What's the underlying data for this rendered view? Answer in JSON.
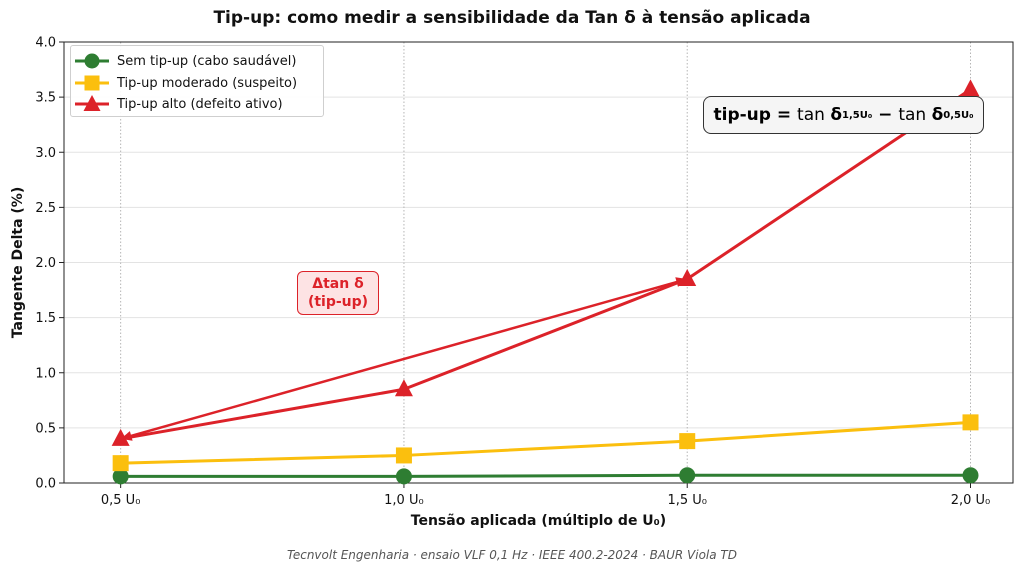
{
  "chart_data": {
    "type": "line",
    "title": "Tip-up: como medir a sensibilidade da Tan δ à tensão aplicada",
    "xlabel": "Tensão aplicada (múltiplo de U₀)",
    "ylabel": "Tangente Delta (%)",
    "categories": [
      "0,5 U₀",
      "1,0 U₀",
      "1,5 U₀",
      "2,0 U₀"
    ],
    "x": [
      0.5,
      1.0,
      1.5,
      2.0
    ],
    "xlim": [
      0.4,
      2.075
    ],
    "ylim": [
      0,
      4.0
    ],
    "y_ticks": [
      "0.0",
      "0.5",
      "1.0",
      "1.5",
      "2.0",
      "2.5",
      "3.0",
      "3.5",
      "4.0"
    ],
    "grid": true,
    "legend_position": "top-left",
    "series": [
      {
        "name": "Sem tip-up (cabo saudável)",
        "values": [
          0.06,
          0.06,
          0.07,
          0.07
        ],
        "color": "#2e7d32",
        "marker": "circle"
      },
      {
        "name": "Tip-up moderado (suspeito)",
        "values": [
          0.18,
          0.25,
          0.38,
          0.55
        ],
        "color": "#fbbf0e",
        "marker": "square"
      },
      {
        "name": "Tip-up alto (defeito ativo)",
        "values": [
          0.4,
          0.85,
          1.85,
          3.57
        ],
        "color": "#dc2229",
        "marker": "triangle"
      }
    ],
    "annotations": {
      "tipup_label_line1": "Δtan δ",
      "tipup_label_line2": "(tip-up)",
      "tipup_arrow_from_x": 1.5,
      "tipup_arrow_to_x": 0.5,
      "tipup_color": "#dc2229",
      "formula_lhs": "tip-up",
      "formula_eq": " = ",
      "formula_tan1": "tan ",
      "formula_delta1": "δ",
      "formula_sub1": "1,5U₀",
      "formula_minus": " − ",
      "formula_tan2": "tan ",
      "formula_delta2": "δ",
      "formula_sub2": "0,5U₀"
    }
  },
  "footer": "Tecnvolt Engenharia · ensaio VLF 0,1 Hz · IEEE 400.2-2024 · BAUR Viola TD"
}
